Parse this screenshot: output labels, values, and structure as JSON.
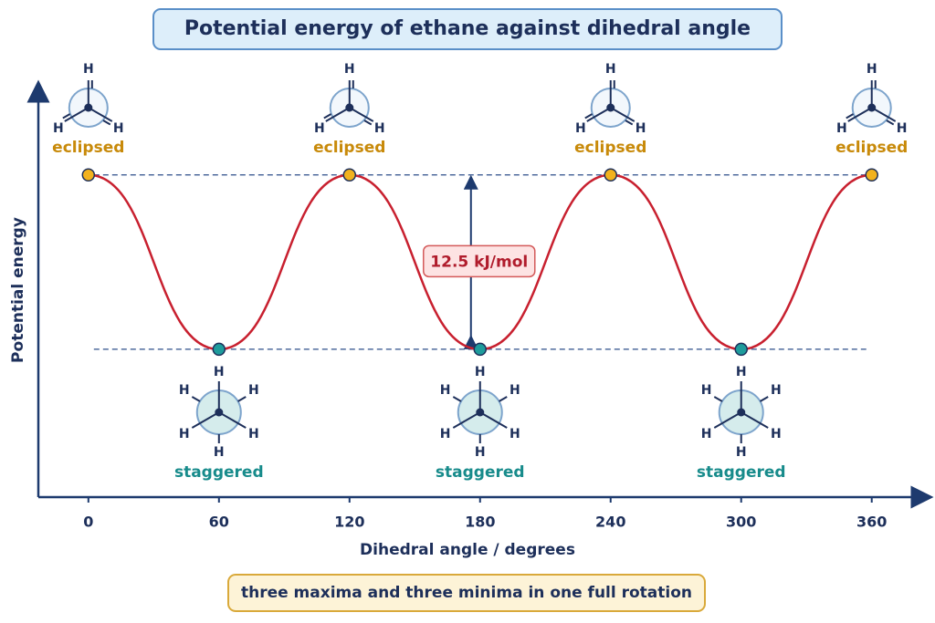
{
  "chart_data": {
    "type": "line",
    "title": "Potential energy of ethane against dihedral angle",
    "x_label": "Dihedral angle / degrees",
    "y_label": "Potential energy",
    "x": [
      0,
      60,
      120,
      180,
      240,
      300,
      360
    ],
    "values": [
      12.5,
      0,
      12.5,
      0,
      12.5,
      0,
      12.5
    ],
    "conformers": [
      "eclipsed",
      "staggered",
      "eclipsed",
      "staggered",
      "eclipsed",
      "staggered",
      "eclipsed"
    ],
    "conformer_colors": {
      "eclipsed": "#f2b21e",
      "staggered": "#1e9c9c"
    },
    "atom": "H",
    "color": "#c8202f",
    "xlim": [
      -23,
      379
    ],
    "ylim": [
      -10.6,
      18.5
    ],
    "xticks": [
      0,
      60,
      120,
      180,
      240,
      300,
      360
    ],
    "annotation": "12.5 kJ/mol",
    "note": "three maxima and three minima in one full rotation"
  }
}
